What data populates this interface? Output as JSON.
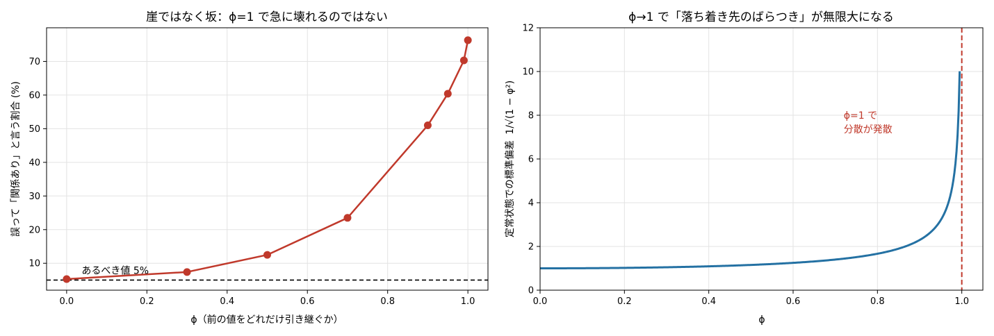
{
  "chart_data": [
    {
      "type": "line",
      "title": "崖ではなく坂：ϕ=1 で急に壊れるのではない",
      "xlabel": "ϕ（前の値をどれだけ引き継ぐか）",
      "ylabel": "誤って「関係あり」と言う割合 (%)",
      "xlim": [
        -0.05,
        1.05
      ],
      "ylim": [
        2,
        80
      ],
      "xticks": [
        "0.0",
        "0.2",
        "0.4",
        "0.6",
        "0.8",
        "1.0"
      ],
      "yticks": [
        "10",
        "20",
        "30",
        "40",
        "50",
        "60",
        "70"
      ],
      "grid": true,
      "series": [
        {
          "color": "#c0392b",
          "x": [
            0.0,
            0.3,
            0.5,
            0.7,
            0.9,
            0.95,
            0.99,
            1.0
          ],
          "y": [
            5.3,
            7.4,
            12.5,
            23.5,
            51.0,
            60.4,
            70.3,
            76.3
          ]
        }
      ],
      "reference_line": {
        "y": 5,
        "style": "dashed",
        "color": "#000000"
      },
      "annotation": {
        "text": "あるべき値 5%",
        "x": 0.02,
        "y": 6.8
      }
    },
    {
      "type": "line",
      "title": "ϕ→1 で「落ち着き先のばらつき」が無限大になる",
      "xlabel": "ϕ",
      "ylabel": "定常状態での標準偏差",
      "ylabel_formula": "1/√(1 − φ²)",
      "xlim": [
        0.0,
        1.05
      ],
      "ylim": [
        0,
        12
      ],
      "xticks": [
        "0.0",
        "0.2",
        "0.4",
        "0.6",
        "0.8",
        "1.0"
      ],
      "yticks": [
        "0",
        "2",
        "4",
        "6",
        "8",
        "10",
        "12"
      ],
      "grid": true,
      "series": [
        {
          "color": "#2471a3",
          "function": "1/sqrt(1-x^2)",
          "x_range": [
            0.0,
            0.995
          ]
        }
      ],
      "reference_line": {
        "x": 1.0,
        "style": "dashed",
        "color": "#c0392b"
      },
      "annotation": {
        "lines": [
          "ϕ=1 で",
          "分散が発散"
        ],
        "x": 0.72,
        "y": 8.0,
        "color": "#c0392b"
      }
    }
  ]
}
